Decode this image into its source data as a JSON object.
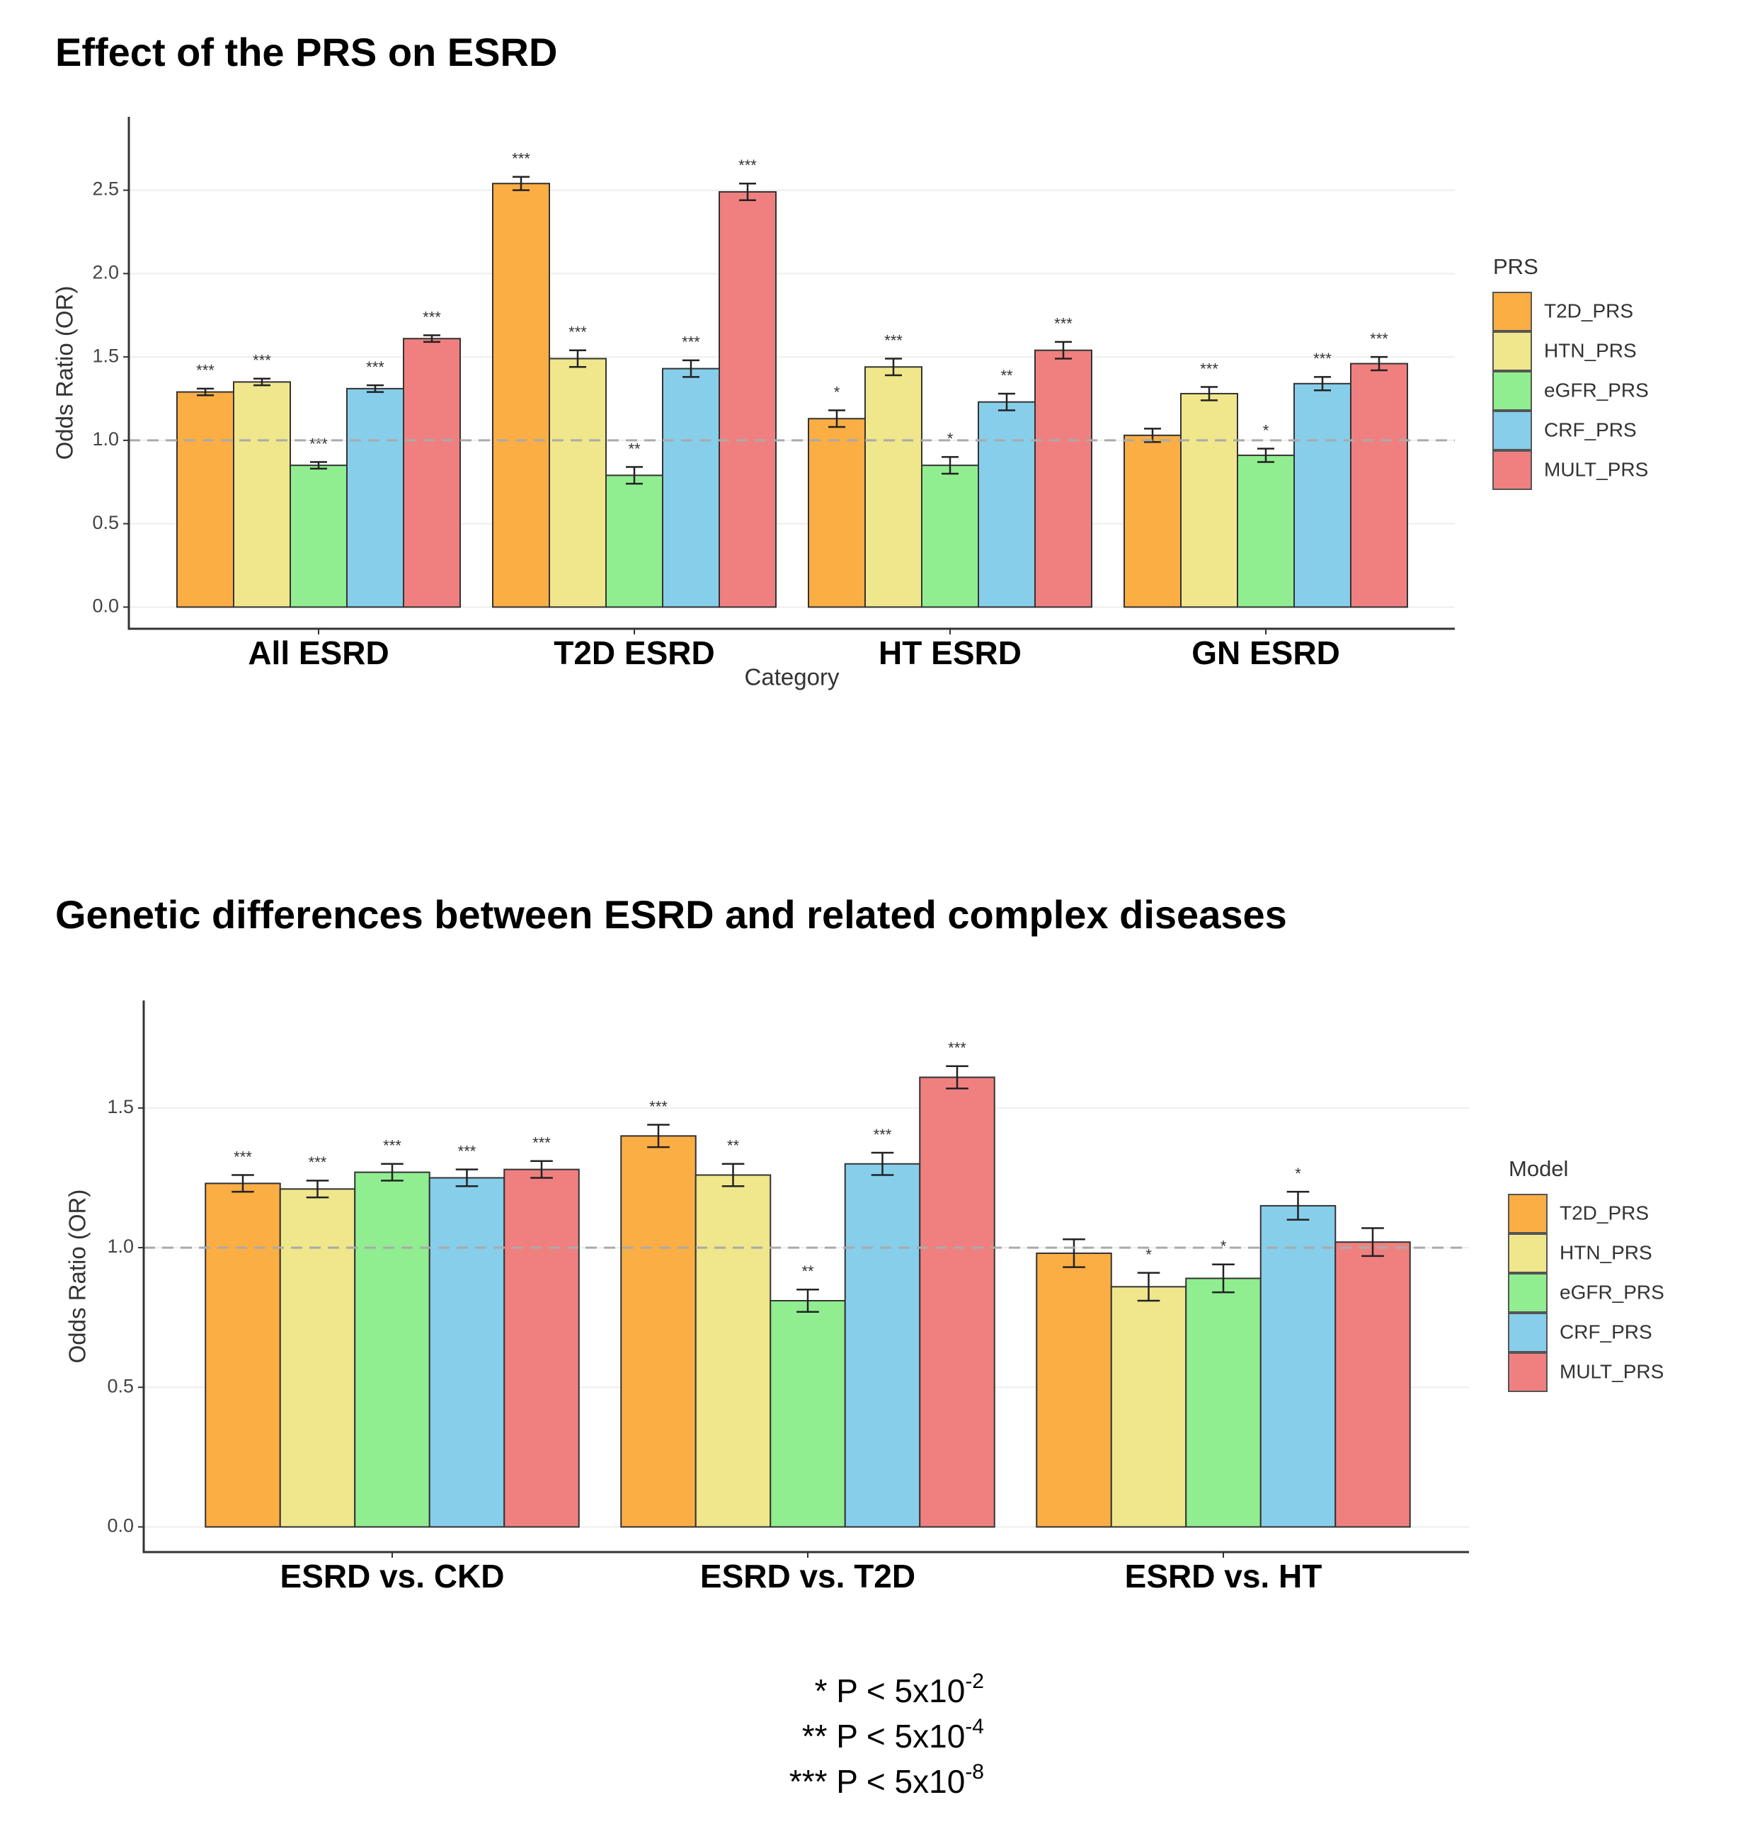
{
  "chart_data": [
    {
      "type": "bar",
      "title": "Effect of the PRS on ESRD",
      "x_label": "Category",
      "y_label": "Odds Ratio (OR)",
      "categories": [
        "All ESRD",
        "T2D ESRD",
        "HT ESRD",
        "GN ESRD"
      ],
      "legend_title": "PRS",
      "series": [
        {
          "name": "T2D_PRS",
          "color": "#fbae44",
          "values": [
            1.29,
            2.54,
            1.13,
            1.03
          ],
          "errors": [
            0.02,
            0.04,
            0.05,
            0.04
          ],
          "labels": [
            "***",
            "***",
            "*",
            null
          ]
        },
        {
          "name": "HTN_PRS",
          "color": "#f0e68c",
          "values": [
            1.35,
            1.49,
            1.44,
            1.28
          ],
          "errors": [
            0.02,
            0.05,
            0.05,
            0.04
          ],
          "labels": [
            "***",
            "***",
            "***",
            "***"
          ]
        },
        {
          "name": "eGFR_PRS",
          "color": "#90ee90",
          "values": [
            0.85,
            0.79,
            0.85,
            0.91
          ],
          "errors": [
            0.02,
            0.05,
            0.05,
            0.04
          ],
          "labels": [
            "***",
            "**",
            "*",
            "*"
          ]
        },
        {
          "name": "CRF_PRS",
          "color": "#87ceeb",
          "values": [
            1.31,
            1.43,
            1.23,
            1.34
          ],
          "errors": [
            0.02,
            0.05,
            0.05,
            0.04
          ],
          "labels": [
            "***",
            "***",
            "**",
            "***"
          ]
        },
        {
          "name": "MULT_PRS",
          "color": "#f08080",
          "values": [
            1.61,
            2.49,
            1.54,
            1.46
          ],
          "errors": [
            0.02,
            0.05,
            0.05,
            0.04
          ],
          "labels": [
            "***",
            "***",
            "***",
            "***"
          ]
        }
      ],
      "ylim": [
        -0.13,
        2.94
      ],
      "yticks": [
        {
          "value": 0,
          "label": "0.0"
        },
        0.5,
        {
          "value": 1,
          "label": "1.0"
        },
        1.5,
        {
          "value": 2,
          "label": "2.0"
        },
        2.5
      ],
      "reference_line": 1,
      "grid": true
    },
    {
      "type": "bar",
      "title": "Genetic differences between ESRD and related complex diseases",
      "y_label": "Odds Ratio (OR)",
      "categories": [
        "ESRD vs. CKD",
        "ESRD vs. T2D",
        "ESRD vs. HT"
      ],
      "legend_title": "Model",
      "series": [
        {
          "name": "T2D_PRS",
          "color": "#fbae44",
          "values": [
            1.23,
            1.4,
            0.98
          ],
          "errors": [
            0.03,
            0.04,
            0.05
          ],
          "labels": [
            "***",
            "***",
            null
          ]
        },
        {
          "name": "HTN_PRS",
          "color": "#f0e68c",
          "values": [
            1.21,
            1.26,
            0.86
          ],
          "errors": [
            0.03,
            0.04,
            0.05
          ],
          "labels": [
            "***",
            "**",
            "*"
          ]
        },
        {
          "name": "eGFR_PRS",
          "color": "#90ee90",
          "values": [
            1.27,
            0.81,
            0.89
          ],
          "errors": [
            0.03,
            0.04,
            0.05
          ],
          "labels": [
            "***",
            "**",
            "*"
          ]
        },
        {
          "name": "CRF_PRS",
          "color": "#87ceeb",
          "values": [
            1.25,
            1.3,
            1.15
          ],
          "errors": [
            0.03,
            0.04,
            0.05
          ],
          "labels": [
            "***",
            "***",
            "*"
          ]
        },
        {
          "name": "MULT_PRS",
          "color": "#f08080",
          "values": [
            1.28,
            1.61,
            1.02
          ],
          "errors": [
            0.03,
            0.04,
            0.05
          ],
          "labels": [
            "***",
            "***",
            null
          ]
        }
      ],
      "ylim": [
        -0.09,
        1.885
      ],
      "yticks": [
        {
          "value": 0,
          "label": "0.0"
        },
        0.5,
        {
          "value": 1,
          "label": "1.0"
        },
        1.5
      ],
      "reference_line": 1,
      "grid": true
    }
  ],
  "footnotes": [
    {
      "text": "* P < 5x10",
      "exponent": "-2"
    },
    {
      "text": "** P < 5x10",
      "exponent": "-4"
    },
    {
      "text": "*** P < 5x10",
      "exponent": "-8"
    }
  ]
}
